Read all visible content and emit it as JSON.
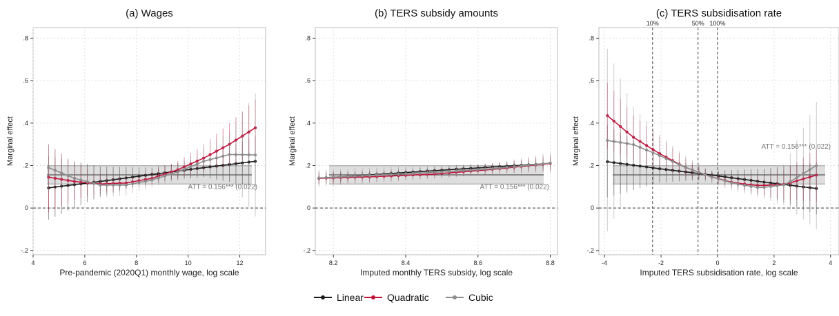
{
  "colors": {
    "linear": "#1a1a1a",
    "quadratic": "#c0143c",
    "cubic": "#8c8c8c",
    "att_band": "#d3d3d3",
    "att_line": "#555555",
    "grid": "#dddddd"
  },
  "legend": {
    "placement": "bottom-center",
    "items": [
      {
        "key": "linear",
        "label": "Linear"
      },
      {
        "key": "quadratic",
        "label": "Quadratic"
      },
      {
        "key": "cubic",
        "label": "Cubic"
      }
    ]
  },
  "chart_data": [
    {
      "type": "line",
      "title": "(a) Wages",
      "xlabel": "Pre-pandemic (2020Q1) monthly wage, log scale",
      "ylabel": "Marginal effect",
      "xlim": [
        4,
        13
      ],
      "ylim": [
        -0.22,
        0.85
      ],
      "xticks": [
        4,
        6,
        8,
        10,
        12
      ],
      "xtick_labels": [
        "4",
        "6",
        "8",
        "10",
        "12"
      ],
      "yticks": [
        -0.2,
        0,
        0.2,
        0.4,
        0.6,
        0.8
      ],
      "ytick_labels": [
        "-.2",
        "0",
        ".2",
        ".4",
        ".6",
        ".8"
      ],
      "grid": true,
      "att": {
        "estimate": 0.156,
        "ci": [
          0.113,
          0.199
        ],
        "label": "ATT = 0.156*** (0.022)"
      },
      "vlines": [],
      "series": [
        {
          "key": "linear",
          "x": [
            4.6,
            6.6,
            8.6,
            10.6,
            12.6
          ],
          "y": [
            0.095,
            0.125,
            0.158,
            0.19,
            0.22
          ],
          "lo": [
            -0.055,
            0.055,
            0.125,
            0.145,
            0.1
          ],
          "hi": [
            0.245,
            0.195,
            0.19,
            0.235,
            0.34
          ]
        },
        {
          "key": "quadratic",
          "x": [
            4.6,
            5.6,
            6.6,
            7.6,
            8.6,
            9.6,
            10.6,
            11.6,
            12.6
          ],
          "y": [
            0.145,
            0.125,
            0.113,
            0.118,
            0.14,
            0.18,
            0.235,
            0.3,
            0.378
          ],
          "lo": [
            -0.02,
            0.04,
            0.07,
            0.09,
            0.11,
            0.14,
            0.17,
            0.2,
            0.25
          ],
          "hi": [
            0.3,
            0.21,
            0.16,
            0.15,
            0.17,
            0.22,
            0.3,
            0.4,
            0.51
          ]
        },
        {
          "key": "cubic",
          "x": [
            4.6,
            5.6,
            6.6,
            7.6,
            8.6,
            9.6,
            10.6,
            11.6,
            12.6
          ],
          "y": [
            0.19,
            0.14,
            0.108,
            0.108,
            0.132,
            0.17,
            0.22,
            0.252,
            0.25
          ],
          "lo": [
            0.08,
            0.07,
            0.05,
            0.06,
            0.1,
            0.13,
            0.16,
            0.14,
            -0.04
          ],
          "hi": [
            0.3,
            0.21,
            0.17,
            0.16,
            0.16,
            0.21,
            0.28,
            0.36,
            0.54
          ]
        }
      ]
    },
    {
      "type": "line",
      "title": "(b) TERS subsidy amounts",
      "xlabel": "Imputed monthly TERS subsidy, log scale",
      "ylabel": "Marginal effect",
      "xlim": [
        8.15,
        8.82
      ],
      "ylim": [
        -0.22,
        0.85
      ],
      "xticks": [
        8.2,
        8.4,
        8.6,
        8.8
      ],
      "xtick_labels": [
        "8.2",
        "8.4",
        "8.6",
        "8.8"
      ],
      "yticks": [
        -0.2,
        0,
        0.2,
        0.4,
        0.6,
        0.8
      ],
      "ytick_labels": [
        "-.2",
        "0",
        ".2",
        ".4",
        ".6",
        ".8"
      ],
      "grid": true,
      "att": {
        "estimate": 0.156,
        "ci": [
          0.113,
          0.199
        ],
        "label": "ATT = 0.156*** (0.022)"
      },
      "vlines": [],
      "series": [
        {
          "key": "linear",
          "x": [
            8.16,
            8.32,
            8.48,
            8.64,
            8.8
          ],
          "y": [
            0.14,
            0.158,
            0.176,
            0.193,
            0.21
          ],
          "lo": [
            0.115,
            0.14,
            0.16,
            0.175,
            0.185
          ],
          "hi": [
            0.165,
            0.176,
            0.192,
            0.211,
            0.235
          ]
        },
        {
          "key": "quadratic",
          "x": [
            8.16,
            8.32,
            8.48,
            8.64,
            8.8
          ],
          "y": [
            0.14,
            0.148,
            0.16,
            0.182,
            0.21
          ],
          "lo": [
            0.11,
            0.125,
            0.14,
            0.16,
            0.175
          ],
          "hi": [
            0.17,
            0.171,
            0.18,
            0.204,
            0.25
          ]
        },
        {
          "key": "cubic",
          "x": [
            8.16,
            8.32,
            8.48,
            8.64,
            8.8
          ],
          "y": [
            0.142,
            0.155,
            0.168,
            0.185,
            0.212
          ],
          "lo": [
            0.1,
            0.12,
            0.14,
            0.16,
            0.17
          ],
          "hi": [
            0.18,
            0.19,
            0.2,
            0.21,
            0.26
          ]
        }
      ]
    },
    {
      "type": "line",
      "title": "(c) TERS subsidisation rate",
      "xlabel": "Imputed TERS subsidisation rate, log scale",
      "ylabel": "Marginal effect",
      "xlim": [
        -4.2,
        4.3
      ],
      "ylim": [
        -0.22,
        0.85
      ],
      "xticks": [
        -4,
        -2,
        0,
        2,
        4
      ],
      "xtick_labels": [
        "-4",
        "-2",
        "0",
        "2",
        "4"
      ],
      "yticks": [
        -0.2,
        0,
        0.2,
        0.4,
        0.6,
        0.8
      ],
      "ytick_labels": [
        "-.2",
        "0",
        ".2",
        ".4",
        ".6",
        ".8"
      ],
      "grid": true,
      "att": {
        "estimate": 0.156,
        "ci": [
          0.113,
          0.199
        ],
        "label": "ATT = 0.156*** (0.022)"
      },
      "vlines": [
        {
          "x": -2.3,
          "label": "10%"
        },
        {
          "x": -0.69,
          "label": "50%"
        },
        {
          "x": 0,
          "label": "100%"
        }
      ],
      "series": [
        {
          "key": "linear",
          "x": [
            -3.9,
            -2.05,
            -0.2,
            1.65,
            3.5
          ],
          "y": [
            0.218,
            0.185,
            0.155,
            0.122,
            0.092
          ],
          "lo": [
            0.05,
            0.12,
            0.135,
            0.06,
            -0.03
          ],
          "hi": [
            0.39,
            0.25,
            0.175,
            0.185,
            0.215
          ]
        },
        {
          "key": "quadratic",
          "x": [
            -3.9,
            -3.0,
            -2.1,
            -1.2,
            -0.3,
            0.6,
            1.5,
            2.4,
            3.5
          ],
          "y": [
            0.435,
            0.335,
            0.26,
            0.195,
            0.15,
            0.118,
            0.105,
            0.112,
            0.155
          ],
          "lo": [
            0.28,
            0.23,
            0.18,
            0.15,
            0.13,
            0.09,
            0.06,
            0.04,
            0.03
          ],
          "hi": [
            0.59,
            0.44,
            0.34,
            0.24,
            0.17,
            0.15,
            0.15,
            0.18,
            0.28
          ]
        },
        {
          "key": "cubic",
          "x": [
            -3.9,
            -3.0,
            -2.1,
            -1.2,
            -0.3,
            0.6,
            1.5,
            2.4,
            3.5
          ],
          "y": [
            0.318,
            0.3,
            0.25,
            0.195,
            0.15,
            0.115,
            0.095,
            0.11,
            0.2
          ],
          "lo": [
            -0.11,
            0.12,
            0.15,
            0.14,
            0.12,
            0.08,
            0.05,
            0.01,
            -0.1
          ],
          "hi": [
            0.75,
            0.48,
            0.35,
            0.25,
            0.18,
            0.15,
            0.14,
            0.21,
            0.5
          ]
        }
      ]
    }
  ]
}
